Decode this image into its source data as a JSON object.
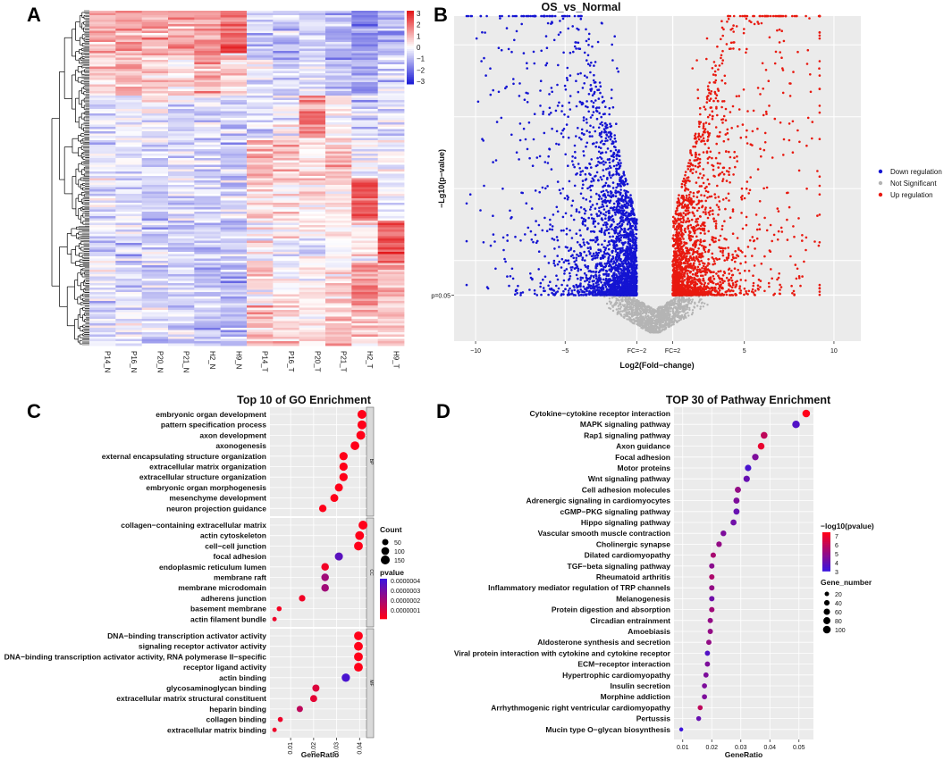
{
  "panel_labels": [
    "A",
    "B",
    "C",
    "D"
  ],
  "colors": {
    "heat_low": "#1f1fd6",
    "heat_mid": "#ffffff",
    "heat_high": "#e3191c",
    "down": "#1414d2",
    "up": "#e8190f",
    "ns": "#b4b4b4",
    "panel_bg": "#ebebeb",
    "pval_low": "#ff0019",
    "pval_high": "#3c14dc"
  },
  "chart_data": [
    {
      "id": "A",
      "type": "heatmap",
      "title": "",
      "columns": [
        "P14_N",
        "P16_N",
        "P20_N",
        "P21_N",
        "H2_N",
        "H9_N",
        "P14_T",
        "P16_T",
        "P20_T",
        "P21_T",
        "H2_T",
        "H9_T"
      ],
      "scale": {
        "min": -3,
        "max": 3,
        "ticks": [
          "3",
          "2",
          "1",
          "0",
          "−1",
          "−2",
          "−3"
        ]
      },
      "block_means": [
        [
          0.9,
          1.0,
          1.0,
          1.0,
          1.3,
          2.0,
          -0.6,
          -0.7,
          -0.6,
          -0.9,
          -1.5,
          -1.0
        ],
        [
          0.7,
          0.8,
          0.6,
          0.7,
          1.0,
          0.6,
          -0.4,
          -0.5,
          -0.3,
          -0.7,
          -1.2,
          -0.5
        ],
        [
          -0.2,
          -0.3,
          -0.2,
          -0.3,
          -0.5,
          -0.7,
          -0.3,
          -0.1,
          1.6,
          0.2,
          -0.6,
          -0.5
        ],
        [
          -0.3,
          -0.4,
          -0.4,
          -0.4,
          -0.6,
          -0.8,
          0.9,
          0.6,
          0.2,
          0.9,
          -0.4,
          -0.3
        ],
        [
          -0.4,
          -0.5,
          -0.5,
          -0.4,
          -0.5,
          -0.6,
          0.5,
          0.3,
          0.3,
          0.3,
          2.2,
          -0.2
        ],
        [
          -0.5,
          -0.6,
          -0.6,
          -0.5,
          -0.6,
          -0.7,
          0.1,
          0.0,
          -0.1,
          0.1,
          0.3,
          2.0
        ],
        [
          -0.5,
          -0.5,
          -0.5,
          -0.5,
          -0.7,
          -0.9,
          0.4,
          0.3,
          0.2,
          0.4,
          1.6,
          1.0
        ],
        [
          -0.4,
          -0.4,
          -0.5,
          -0.4,
          -0.7,
          -0.8,
          0.8,
          0.6,
          0.4,
          0.7,
          0.7,
          0.6
        ]
      ]
    },
    {
      "id": "B",
      "type": "scatter",
      "title": "OS_vs_Normal",
      "xlabel": "Log2(Fold−change)",
      "ylabel": "−Lg10(p−value)",
      "xlim": [
        -11.2,
        11.5
      ],
      "ylim": [
        -0.3,
        11
      ],
      "xticks": [
        "−10",
        "−5",
        "FC=−2",
        "FC=2",
        "5",
        "10"
      ],
      "xtick_values": [
        -10,
        -5,
        -1,
        1,
        5,
        10
      ],
      "p_threshold_label": "p=0.05",
      "p_threshold_y": 1.3,
      "fc_thresholds": [
        -1,
        1
      ],
      "legend": [
        "Down regulation",
        "Not Significant",
        "Up regulation"
      ],
      "series": [
        {
          "name": "Down regulation",
          "n_points": 2600,
          "x_range": [
            -10.5,
            -1
          ],
          "y_range": [
            1.3,
            11
          ]
        },
        {
          "name": "Not Significant",
          "n_points": 1200,
          "x_range": [
            -3,
            3
          ],
          "y_range": [
            0,
            1.3
          ]
        },
        {
          "name": "Up regulation",
          "n_points": 2000,
          "x_range": [
            1,
            9.2
          ],
          "y_range": [
            1.3,
            11
          ]
        }
      ]
    },
    {
      "id": "C",
      "type": "scatter",
      "title": "Top 10 of GO Enrichment",
      "xlabel": "GeneRatio",
      "xlim": [
        0.001,
        0.043
      ],
      "xticks": [
        0.01,
        0.02,
        0.03,
        0.04
      ],
      "xtick_labels": [
        "0.01",
        "0.02",
        "0.03",
        "0.04"
      ],
      "facets": [
        {
          "label": "BP",
          "terms": [
            {
              "term": "embryonic organ development",
              "ratio": 0.041,
              "count": 150,
              "p": 0
            },
            {
              "term": "pattern specification process",
              "ratio": 0.041,
              "count": 150,
              "p": 0
            },
            {
              "term": "axon development",
              "ratio": 0.0405,
              "count": 148,
              "p": 0
            },
            {
              "term": "axonogenesis",
              "ratio": 0.038,
              "count": 140,
              "p": 0
            },
            {
              "term": "external encapsulating structure organization",
              "ratio": 0.033,
              "count": 120,
              "p": 0
            },
            {
              "term": "extracellular matrix organization",
              "ratio": 0.033,
              "count": 120,
              "p": 0
            },
            {
              "term": "extracellular structure organization",
              "ratio": 0.033,
              "count": 120,
              "p": 0
            },
            {
              "term": "embryonic organ morphogenesis",
              "ratio": 0.031,
              "count": 112,
              "p": 0
            },
            {
              "term": "mesenchyme development",
              "ratio": 0.029,
              "count": 106,
              "p": 0
            },
            {
              "term": "neuron projection guidance",
              "ratio": 0.024,
              "count": 88,
              "p": 0
            }
          ]
        },
        {
          "label": "CC",
          "terms": [
            {
              "term": "collagen−containing extracellular matrix",
              "ratio": 0.0415,
              "count": 150,
              "p": 0
            },
            {
              "term": "actin cytoskeleton",
              "ratio": 0.04,
              "count": 145,
              "p": 0
            },
            {
              "term": "cell−cell junction",
              "ratio": 0.0395,
              "count": 143,
              "p": 0
            },
            {
              "term": "focal adhesion",
              "ratio": 0.031,
              "count": 112,
              "p": 3.8e-06
            },
            {
              "term": "endoplasmic reticulum lumen",
              "ratio": 0.025,
              "count": 92,
              "p": 3e-07
            },
            {
              "term": "membrane raft",
              "ratio": 0.025,
              "count": 92,
              "p": 2.2e-06
            },
            {
              "term": "membrane microdomain",
              "ratio": 0.025,
              "count": 92,
              "p": 2.2e-06
            },
            {
              "term": "adherens junction",
              "ratio": 0.015,
              "count": 55,
              "p": 3e-07
            },
            {
              "term": "basement membrane",
              "ratio": 0.005,
              "count": 20,
              "p": 2e-07
            },
            {
              "term": "actin filament bundle",
              "ratio": 0.003,
              "count": 12,
              "p": 4e-07
            }
          ]
        },
        {
          "label": "MF",
          "terms": [
            {
              "term": "DNA−binding transcription activator activity",
              "ratio": 0.0395,
              "count": 143,
              "p": 0
            },
            {
              "term": "signaling receptor activator activity",
              "ratio": 0.0395,
              "count": 143,
              "p": 0
            },
            {
              "term": "DNA−binding transcription activator activity, RNA polymerase II−specific",
              "ratio": 0.0395,
              "count": 143,
              "p": 0
            },
            {
              "term": "receptor ligand activity",
              "ratio": 0.0395,
              "count": 143,
              "p": 0
            },
            {
              "term": "actin binding",
              "ratio": 0.034,
              "count": 122,
              "p": 4.2e-06
            },
            {
              "term": "glycosaminoglycan binding",
              "ratio": 0.021,
              "count": 76,
              "p": 8e-07
            },
            {
              "term": "extracellular matrix structural constituent",
              "ratio": 0.02,
              "count": 73,
              "p": 6e-07
            },
            {
              "term": "heparin binding",
              "ratio": 0.014,
              "count": 50,
              "p": 1.5e-06
            },
            {
              "term": "collagen binding",
              "ratio": 0.0055,
              "count": 22,
              "p": 4e-07
            },
            {
              "term": "extracellular matrix binding",
              "ratio": 0.003,
              "count": 12,
              "p": 4e-07
            }
          ]
        }
      ],
      "legend_count": {
        "title": "Count",
        "values": [
          50,
          100,
          150
        ],
        "labels": [
          "50",
          "100",
          "150"
        ]
      },
      "legend_pvalue": {
        "title": "pvalue",
        "labels": [
          "0.0000004",
          "0.0000003",
          "0.0000002",
          "0.0000001"
        ]
      }
    },
    {
      "id": "D",
      "type": "scatter",
      "title": "TOP 30 of Pathway Enrichment",
      "xlabel": "GeneRatio",
      "xlim": [
        0.007,
        0.055
      ],
      "xticks": [
        0.01,
        0.02,
        0.03,
        0.04,
        0.05
      ],
      "xtick_labels": [
        "0.01",
        "0.02",
        "0.03",
        "0.04",
        "0.05"
      ],
      "terms": [
        {
          "term": "Cytokine−cytokine receptor interaction",
          "ratio": 0.0525,
          "genes": 100,
          "lp": 7.5
        },
        {
          "term": "MAPK signaling pathway",
          "ratio": 0.049,
          "genes": 95,
          "lp": 3.5
        },
        {
          "term": "Rap1 signaling pathway",
          "ratio": 0.038,
          "genes": 72,
          "lp": 6.0
        },
        {
          "term": "Axon guidance",
          "ratio": 0.037,
          "genes": 70,
          "lp": 7.0
        },
        {
          "term": "Focal adhesion",
          "ratio": 0.035,
          "genes": 66,
          "lp": 4.5
        },
        {
          "term": "Motor proteins",
          "ratio": 0.0325,
          "genes": 62,
          "lp": 3.3
        },
        {
          "term": "Wnt signaling pathway",
          "ratio": 0.032,
          "genes": 60,
          "lp": 4.0
        },
        {
          "term": "Cell adhesion molecules",
          "ratio": 0.029,
          "genes": 55,
          "lp": 5.0
        },
        {
          "term": "Adrenergic signaling in cardiomyocytes",
          "ratio": 0.0285,
          "genes": 54,
          "lp": 4.5
        },
        {
          "term": "cGMP−PKG signaling pathway",
          "ratio": 0.0285,
          "genes": 54,
          "lp": 4.0
        },
        {
          "term": "Hippo signaling pathway",
          "ratio": 0.0275,
          "genes": 52,
          "lp": 4.2
        },
        {
          "term": "Vascular smooth muscle contraction",
          "ratio": 0.024,
          "genes": 45,
          "lp": 4.5
        },
        {
          "term": "Cholinergic synapse",
          "ratio": 0.0225,
          "genes": 42,
          "lp": 5.0
        },
        {
          "term": "Dilated cardiomyopathy",
          "ratio": 0.0205,
          "genes": 38,
          "lp": 5.5
        },
        {
          "term": "TGF−beta signaling pathway",
          "ratio": 0.02,
          "genes": 37,
          "lp": 4.8
        },
        {
          "term": "Rheumatoid arthritis",
          "ratio": 0.02,
          "genes": 37,
          "lp": 5.6
        },
        {
          "term": "Inflammatory mediator regulation of TRP channels",
          "ratio": 0.02,
          "genes": 37,
          "lp": 5.0
        },
        {
          "term": "Melanogenesis",
          "ratio": 0.02,
          "genes": 37,
          "lp": 4.2
        },
        {
          "term": "Protein digestion and absorption",
          "ratio": 0.02,
          "genes": 37,
          "lp": 5.3
        },
        {
          "term": "Circadian entrainment",
          "ratio": 0.0195,
          "genes": 36,
          "lp": 5.0
        },
        {
          "term": "Amoebiasis",
          "ratio": 0.0195,
          "genes": 36,
          "lp": 5.0
        },
        {
          "term": "Aldosterone synthesis and secretion",
          "ratio": 0.019,
          "genes": 35,
          "lp": 5.0
        },
        {
          "term": "Viral protein interaction with cytokine and cytokine receptor",
          "ratio": 0.0185,
          "genes": 34,
          "lp": 3.5
        },
        {
          "term": "ECM−receptor interaction",
          "ratio": 0.0185,
          "genes": 34,
          "lp": 4.5
        },
        {
          "term": "Hypertrophic cardiomyopathy",
          "ratio": 0.018,
          "genes": 33,
          "lp": 4.5
        },
        {
          "term": "Insulin secretion",
          "ratio": 0.0175,
          "genes": 32,
          "lp": 4.5
        },
        {
          "term": "Morphine addiction",
          "ratio": 0.0175,
          "genes": 32,
          "lp": 4.5
        },
        {
          "term": "Arrhythmogenic right ventricular cardiomyopathy",
          "ratio": 0.016,
          "genes": 30,
          "lp": 6.0
        },
        {
          "term": "Pertussis",
          "ratio": 0.0155,
          "genes": 28,
          "lp": 4.0
        },
        {
          "term": "Mucin type O−glycan biosynthesis",
          "ratio": 0.0095,
          "genes": 15,
          "lp": 3.0
        }
      ],
      "legend_lp": {
        "title": "−log10(pvalue)",
        "labels": [
          "7",
          "6",
          "5",
          "4",
          "3"
        ],
        "values": [
          7,
          6,
          5,
          4,
          3
        ]
      },
      "legend_genes": {
        "title": "Gene_number",
        "values": [
          20,
          40,
          60,
          80,
          100
        ],
        "labels": [
          "20",
          "40",
          "60",
          "80",
          "100"
        ]
      }
    }
  ]
}
